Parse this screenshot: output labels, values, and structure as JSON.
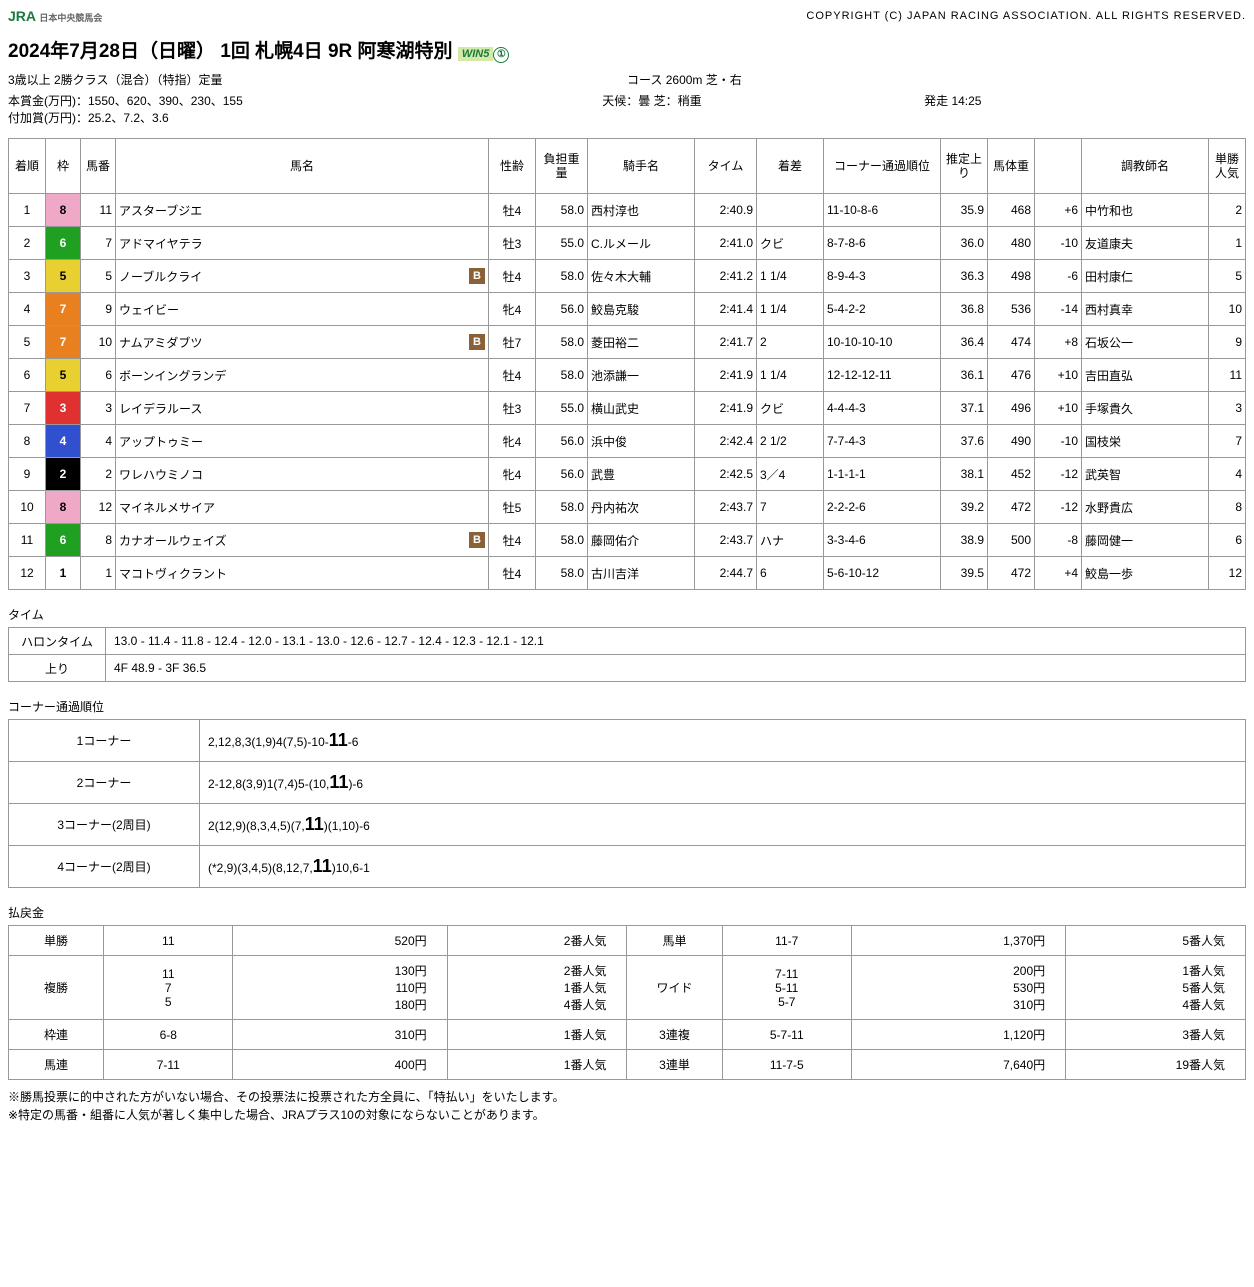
{
  "header": {
    "logo": "JRA",
    "logo_sub": "日本中央競馬会",
    "copyright": "COPYRIGHT (C) JAPAN RACING ASSOCIATION. ALL RIGHTS RESERVED."
  },
  "title": {
    "date": "2024年7月28日（日曜）",
    "meet": "1回 札幌4日",
    "race": "9R",
    "name": "阿寒湖特別",
    "win5": "WIN5",
    "win5num": "①"
  },
  "meta": {
    "class": "3歳以上 2勝クラス（混合）（特指）定量",
    "course": "コース 2600m 芝・右",
    "prize": "本賞金(万円)：1550、620、390、230、155",
    "added": "付加賞(万円)：25.2、7.2、3.6",
    "weather": "天候：曇 芝：稍重",
    "start": "発走 14:25"
  },
  "results": {
    "headers": [
      "着順",
      "枠",
      "馬番",
      "馬名",
      "性齢",
      "負担重量",
      "騎手名",
      "タイム",
      "着差",
      "コーナー通過順位",
      "推定上り",
      "馬体重",
      "",
      "調教師名",
      "単勝人気"
    ],
    "rows": [
      {
        "rank": "1",
        "waku": "8",
        "num": "11",
        "horse": "アスターブジエ",
        "sex_age": "牡4",
        "weight": "58.0",
        "jockey": "西村淳也",
        "time": "2:40.9",
        "margin": "",
        "corners": "11-10-8-6",
        "last": "35.9",
        "bw": "468",
        "bwd": "+6",
        "trainer": "中竹和也",
        "pop": "2"
      },
      {
        "rank": "2",
        "waku": "6",
        "num": "7",
        "horse": "アドマイヤテラ",
        "sex_age": "牡3",
        "weight": "55.0",
        "jockey": "C.ルメール",
        "time": "2:41.0",
        "margin": "クビ",
        "corners": "8-7-8-6",
        "last": "36.0",
        "bw": "480",
        "bwd": "-10",
        "trainer": "友道康夫",
        "pop": "1"
      },
      {
        "rank": "3",
        "waku": "5",
        "num": "5",
        "horse": "ノーブルクライ",
        "blinker": "B",
        "sex_age": "牡4",
        "weight": "58.0",
        "jockey": "佐々木大輔",
        "time": "2:41.2",
        "margin": "1 1/4",
        "corners": "8-9-4-3",
        "last": "36.3",
        "bw": "498",
        "bwd": "-6",
        "trainer": "田村康仁",
        "pop": "5"
      },
      {
        "rank": "4",
        "waku": "7",
        "num": "9",
        "horse": "ウェイビー",
        "sex_age": "牝4",
        "weight": "56.0",
        "jockey": "鮫島克駿",
        "time": "2:41.4",
        "margin": "1 1/4",
        "corners": "5-4-2-2",
        "last": "36.8",
        "bw": "536",
        "bwd": "-14",
        "trainer": "西村真幸",
        "pop": "10"
      },
      {
        "rank": "5",
        "waku": "7",
        "num": "10",
        "horse": "ナムアミダブツ",
        "blinker": "B",
        "sex_age": "牡7",
        "weight": "58.0",
        "jockey": "菱田裕二",
        "time": "2:41.7",
        "margin": "2",
        "corners": "10-10-10-10",
        "last": "36.4",
        "bw": "474",
        "bwd": "+8",
        "trainer": "石坂公一",
        "pop": "9"
      },
      {
        "rank": "6",
        "waku": "5",
        "num": "6",
        "horse": "ボーンイングランデ",
        "sex_age": "牡4",
        "weight": "58.0",
        "jockey": "池添謙一",
        "time": "2:41.9",
        "margin": "1 1/4",
        "corners": "12-12-12-11",
        "last": "36.1",
        "bw": "476",
        "bwd": "+10",
        "trainer": "吉田直弘",
        "pop": "11"
      },
      {
        "rank": "7",
        "waku": "3",
        "num": "3",
        "horse": "レイデラルース",
        "sex_age": "牡3",
        "weight": "55.0",
        "jockey": "横山武史",
        "time": "2:41.9",
        "margin": "クビ",
        "corners": "4-4-4-3",
        "last": "37.1",
        "bw": "496",
        "bwd": "+10",
        "trainer": "手塚貴久",
        "pop": "3"
      },
      {
        "rank": "8",
        "waku": "4",
        "num": "4",
        "horse": "アップトゥミー",
        "sex_age": "牝4",
        "weight": "56.0",
        "jockey": "浜中俊",
        "time": "2:42.4",
        "margin": "2 1/2",
        "corners": "7-7-4-3",
        "last": "37.6",
        "bw": "490",
        "bwd": "-10",
        "trainer": "国枝栄",
        "pop": "7"
      },
      {
        "rank": "9",
        "waku": "2",
        "num": "2",
        "horse": "ワレハウミノコ",
        "sex_age": "牝4",
        "weight": "56.0",
        "jockey": "武豊",
        "time": "2:42.5",
        "margin": "3／4",
        "corners": "1-1-1-1",
        "last": "38.1",
        "bw": "452",
        "bwd": "-12",
        "trainer": "武英智",
        "pop": "4"
      },
      {
        "rank": "10",
        "waku": "8",
        "num": "12",
        "horse": "マイネルメサイア",
        "sex_age": "牡5",
        "weight": "58.0",
        "jockey": "丹内祐次",
        "time": "2:43.7",
        "margin": "7",
        "corners": "2-2-2-6",
        "last": "39.2",
        "bw": "472",
        "bwd": "-12",
        "trainer": "水野貴広",
        "pop": "8"
      },
      {
        "rank": "11",
        "waku": "6",
        "num": "8",
        "horse": "カナオールウェイズ",
        "blinker": "B",
        "sex_age": "牡4",
        "weight": "58.0",
        "jockey": "藤岡佑介",
        "time": "2:43.7",
        "margin": "ハナ",
        "corners": "3-3-4-6",
        "last": "38.9",
        "bw": "500",
        "bwd": "-8",
        "trainer": "藤岡健一",
        "pop": "6"
      },
      {
        "rank": "12",
        "waku": "1",
        "num": "1",
        "horse": "マコトヴィクラント",
        "sex_age": "牡4",
        "weight": "58.0",
        "jockey": "古川吉洋",
        "time": "2:44.7",
        "margin": "6",
        "corners": "5-6-10-12",
        "last": "39.5",
        "bw": "472",
        "bwd": "+4",
        "trainer": "鮫島一歩",
        "pop": "12"
      }
    ]
  },
  "time_section": {
    "title": "タイム",
    "rows": [
      {
        "label": "ハロンタイム",
        "value": "13.0 - 11.4 - 11.8 - 12.4 - 12.0 - 13.1 - 13.0 - 12.6 - 12.7 - 12.4 - 12.3 - 12.1 - 12.1"
      },
      {
        "label": "上り",
        "value": "4F 48.9 - 3F 36.5"
      }
    ]
  },
  "corner_section": {
    "title": "コーナー通過順位",
    "rows": [
      {
        "label": "1コーナー",
        "parts": [
          "2,12,8,3(1,9)4(7,5)-10-",
          "11",
          "-6"
        ]
      },
      {
        "label": "2コーナー",
        "parts": [
          "2-12,8(3,9)1(7,4)5-(10,",
          "11",
          ")-6"
        ]
      },
      {
        "label": "3コーナー(2周目)",
        "parts": [
          "2(12,9)(8,3,4,5)(7,",
          "11",
          ")(1,10)-6"
        ]
      },
      {
        "label": "4コーナー(2周目)",
        "parts": [
          "(*2,9)(3,4,5)(8,12,7,",
          "11",
          ")10,6-1"
        ]
      }
    ]
  },
  "payout_section": {
    "title": "払戻金",
    "rows": [
      [
        {
          "type": "単勝",
          "combo": "11",
          "yen": "520円",
          "pop": "2番人気"
        },
        {
          "type": "馬単",
          "combo": "11-7",
          "yen": "1,370円",
          "pop": "5番人気"
        }
      ],
      [
        {
          "type": "複勝",
          "combo": "11\n7\n5",
          "yen": "130円\n110円\n180円",
          "pop": "2番人気\n1番人気\n4番人気"
        },
        {
          "type": "ワイド",
          "combo": "7-11\n5-11\n5-7",
          "yen": "200円\n530円\n310円",
          "pop": "1番人気\n5番人気\n4番人気"
        }
      ],
      [
        {
          "type": "枠連",
          "combo": "6-8",
          "yen": "310円",
          "pop": "1番人気"
        },
        {
          "type": "3連複",
          "combo": "5-7-11",
          "yen": "1,120円",
          "pop": "3番人気"
        }
      ],
      [
        {
          "type": "馬連",
          "combo": "7-11",
          "yen": "400円",
          "pop": "1番人気"
        },
        {
          "type": "3連単",
          "combo": "11-7-5",
          "yen": "7,640円",
          "pop": "19番人気"
        }
      ]
    ]
  },
  "notes": [
    "※勝馬投票に的中された方がいない場合、その投票法に投票された方全員に、「特払い」をいたします。",
    "※特定の馬番・組番に人気が著しく集中した場合、JRAプラス10の対象にならないことがあります。"
  ]
}
